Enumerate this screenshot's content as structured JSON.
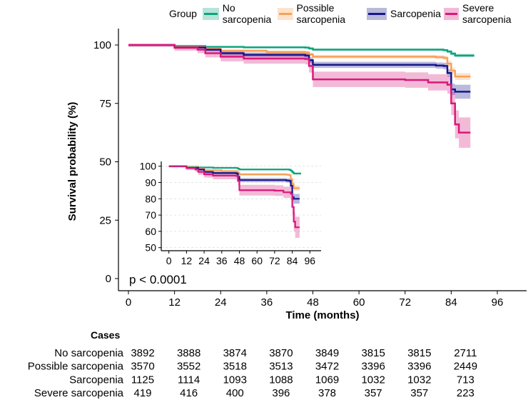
{
  "chart_data": {
    "type": "line",
    "title": "",
    "xlabel": "Time (months)",
    "ylabel": "Survival probability (%)",
    "xlim": [
      0,
      100
    ],
    "ylim": [
      0,
      100
    ],
    "x_ticks": [
      0,
      12,
      24,
      36,
      48,
      60,
      72,
      84,
      96
    ],
    "y_ticks": [
      0,
      25,
      50,
      75,
      100
    ],
    "legend": {
      "title": "Group",
      "placement": "top"
    },
    "pvalue": "p < 0.0001",
    "series": [
      {
        "name": "No sarcopenia",
        "color": "#0da57e",
        "x": [
          0,
          12,
          20,
          30,
          46,
          47,
          48,
          82,
          83,
          84,
          85,
          90
        ],
        "y": [
          100,
          99.6,
          99.2,
          99.0,
          98.9,
          98.5,
          98.0,
          97.8,
          97.2,
          96.3,
          95.5,
          95.5
        ],
        "ci": [
          0.3,
          0.3,
          0.3,
          0.4,
          0.4,
          0.5,
          0.5,
          0.5,
          0.6,
          0.7,
          0.7,
          0.7
        ]
      },
      {
        "name": "Possible sarcopenia",
        "color": "#f7a15b",
        "x": [
          0,
          12,
          20,
          24,
          36,
          46,
          47,
          48,
          80,
          82,
          83,
          84,
          85,
          89
        ],
        "y": [
          100,
          99.3,
          98.5,
          97.5,
          97.0,
          96.8,
          96.0,
          95.0,
          94.8,
          94.5,
          92.0,
          89.0,
          86.5,
          86.5
        ],
        "ci": [
          0.3,
          0.4,
          0.5,
          0.6,
          0.6,
          0.7,
          0.7,
          0.8,
          0.8,
          0.9,
          1.2,
          1.4,
          1.5,
          1.5
        ]
      },
      {
        "name": "Sarcopenia",
        "color": "#17188a",
        "x": [
          0,
          12,
          20,
          24,
          30,
          46,
          47,
          48,
          80,
          82,
          83,
          84,
          85,
          89
        ],
        "y": [
          100,
          99.0,
          98.0,
          96.5,
          95.8,
          95.5,
          93.5,
          91.5,
          91.2,
          91.0,
          88.0,
          81.0,
          80.0,
          80.0
        ],
        "ci": [
          0.4,
          0.6,
          0.8,
          1.0,
          1.0,
          1.1,
          1.2,
          1.3,
          1.3,
          1.4,
          1.6,
          2.4,
          3.0,
          3.0
        ]
      },
      {
        "name": "Severe sarcopenia",
        "color": "#d7197a",
        "x": [
          0,
          12,
          18,
          20,
          24,
          30,
          46,
          47,
          48,
          72,
          78,
          83,
          84,
          85,
          86,
          89
        ],
        "y": [
          100,
          98.8,
          98.0,
          96.5,
          95.0,
          94.2,
          94.0,
          91.0,
          85.3,
          85.0,
          84.0,
          83.0,
          75.0,
          66.0,
          62.5,
          62.5
        ],
        "ci": [
          0.8,
          1.2,
          1.5,
          1.8,
          2.0,
          2.2,
          2.3,
          2.8,
          3.3,
          3.3,
          3.5,
          3.8,
          5.0,
          6.0,
          6.5,
          6.5
        ]
      }
    ],
    "inset": {
      "x_ticks": [
        0,
        12,
        24,
        36,
        48,
        60,
        72,
        84,
        96
      ],
      "y_ticks": [
        50,
        60,
        70,
        80,
        90,
        100
      ],
      "ylim": [
        50,
        100
      ],
      "xlim": [
        0,
        100
      ]
    },
    "risk_table": {
      "title": "Cases",
      "times": [
        0,
        12,
        24,
        36,
        48,
        60,
        72,
        84
      ],
      "rows": [
        {
          "name": "No sarcopenia",
          "values": [
            "3892",
            "3888",
            "3874",
            "3870",
            "3849",
            "3815",
            "3815",
            "2711"
          ]
        },
        {
          "name": "Possible sarcopenia",
          "values": [
            "3570",
            "3552",
            "3518",
            "3513",
            "3472",
            "3396",
            "3396",
            "2449"
          ]
        },
        {
          "name": "Sarcopenia",
          "values": [
            "1125",
            "1114",
            "1093",
            "1088",
            "1069",
            "1032",
            "1032",
            "713"
          ]
        },
        {
          "name": "Severe sarcopenia",
          "values": [
            "419",
            "416",
            "400",
            "396",
            "378",
            "357",
            "357",
            "223"
          ]
        }
      ]
    }
  }
}
